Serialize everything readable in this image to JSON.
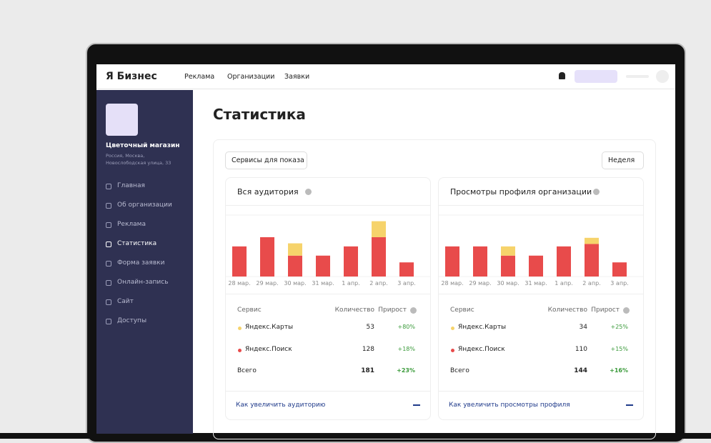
{
  "header": {
    "logo": "Я Бизнес",
    "nav": [
      "Реклама",
      "Организации",
      "Заявки"
    ]
  },
  "sidebar": {
    "name": "Цветочный магазин",
    "address": "Россия, Москва, Новослободская улица, 33",
    "menu": [
      "Главная",
      "Об организации",
      "Реклама",
      "Статистика",
      "Форма заявки",
      "Онлайн-запись",
      "Сайт",
      "Доступы"
    ],
    "active": 3
  },
  "main": {
    "title": "Статистика",
    "services_button": "Сервисы для показа",
    "period": "Неделя"
  },
  "chart_data": [
    {
      "type": "bar",
      "stacked": true,
      "title": "Вся аудитория",
      "categories": [
        "28 мар.",
        "29 мар.",
        "30 мар.",
        "31 мар.",
        "1 апр.",
        "2 апр.",
        "3 апр."
      ],
      "series": [
        {
          "name": "Яндекс.Поиск",
          "color": "#e84b4b",
          "values": [
            49,
            64,
            34,
            34,
            49,
            64,
            23
          ]
        },
        {
          "name": "Яндекс.Карты",
          "color": "#f6d36b",
          "values": [
            0,
            0,
            20,
            0,
            0,
            26,
            0
          ]
        }
      ],
      "ylim": [
        0,
        100
      ]
    },
    {
      "type": "bar",
      "stacked": true,
      "title": "Просмотры профиля организации",
      "categories": [
        "28 мар.",
        "29 мар.",
        "30 мар.",
        "31 мар.",
        "1 апр.",
        "2 апр.",
        "3 апр."
      ],
      "series": [
        {
          "name": "Яндекс.Поиск",
          "color": "#e84b4b",
          "values": [
            49,
            49,
            34,
            34,
            49,
            53,
            23
          ]
        },
        {
          "name": "Яндекс.Карты",
          "color": "#f6d36b",
          "values": [
            0,
            0,
            15,
            0,
            0,
            10,
            0
          ]
        }
      ],
      "ylim": [
        0,
        100
      ]
    }
  ],
  "panels": [
    {
      "table": {
        "headers": [
          "Сервис",
          "Количество",
          "Прирост"
        ],
        "rows": [
          {
            "count": 53,
            "growth": "+80%"
          },
          {
            "count": 128,
            "growth": "+18%"
          }
        ],
        "total": {
          "label": "Всего",
          "count": 181,
          "growth": "+23%"
        }
      },
      "link": "Как увеличить аудиторию"
    },
    {
      "table": {
        "headers": [
          "Сервис",
          "Количество",
          "Прирост"
        ],
        "rows": [
          {
            "count": 34,
            "growth": "+25%"
          },
          {
            "count": 110,
            "growth": "+15%"
          }
        ],
        "total": {
          "label": "Всего",
          "count": 144,
          "growth": "+16%"
        }
      },
      "link": "Как увеличить просмотры профиля"
    }
  ]
}
